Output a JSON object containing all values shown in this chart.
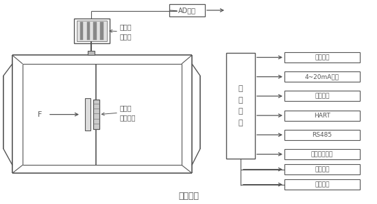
{
  "bg_color": "#ffffff",
  "line_color": "#555555",
  "labels": {
    "ad": "AD转换",
    "sensor": "双电容\n传感器",
    "resistor": "阻流件\n（靶片）",
    "f": "F",
    "micro": "微\n处\n理\n器",
    "lcd": "液晶显示",
    "ma": "4~20mA输出",
    "pulse": "脉冲输出",
    "hart": "HART",
    "rs485": "RS485",
    "ir": "红外置零开关",
    "pressure": "压力采集",
    "temp": "温度采集",
    "caption": "（图１）"
  }
}
